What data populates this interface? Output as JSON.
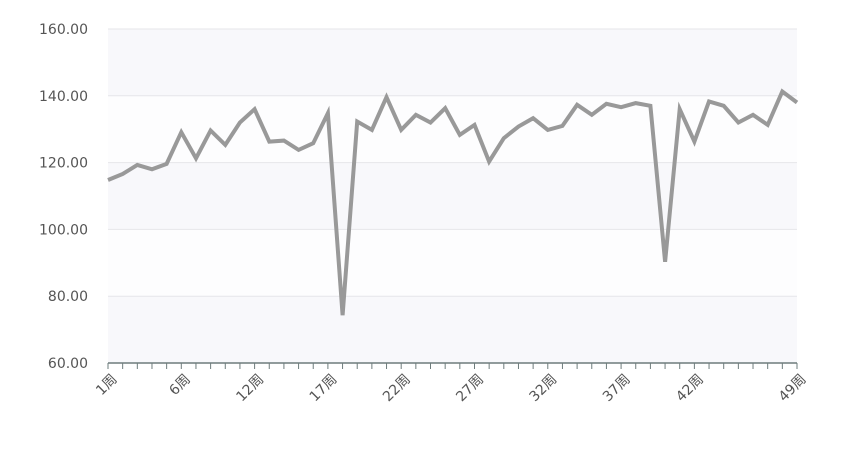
{
  "chart_data": {
    "type": "line",
    "title": "",
    "xlabel": "",
    "ylabel": "",
    "ylim": [
      60,
      160
    ],
    "y_ticks": [
      "60.00",
      "80.00",
      "100.00",
      "120.00",
      "140.00",
      "160.00"
    ],
    "x_tick_labels": [
      {
        "index": 0,
        "label": "1周"
      },
      {
        "index": 5,
        "label": "6周"
      },
      {
        "index": 10,
        "label": "12周"
      },
      {
        "index": 15,
        "label": "17周"
      },
      {
        "index": 20,
        "label": "22周"
      },
      {
        "index": 25,
        "label": "27周"
      },
      {
        "index": 30,
        "label": "32周"
      },
      {
        "index": 35,
        "label": "37周"
      },
      {
        "index": 40,
        "label": "42周"
      },
      {
        "index": 47,
        "label": "49周"
      }
    ],
    "grid": true,
    "line_color": "#999999",
    "series": [
      {
        "values": [
          114.8,
          116.6,
          119.3,
          118.0,
          119.6,
          129.1,
          121.3,
          129.6,
          125.3,
          132.0,
          136.0,
          126.3,
          126.6,
          123.8,
          125.8,
          134.8,
          74.3,
          132.3,
          129.8,
          139.6,
          129.8,
          134.3,
          132.0,
          136.3,
          128.3,
          131.3,
          120.3,
          127.3,
          130.8,
          133.3,
          129.8,
          131.0,
          137.3,
          134.3,
          137.6,
          136.6,
          137.8,
          137.0,
          90.3,
          136.0,
          126.3,
          138.3,
          137.0,
          132.0,
          134.3,
          131.3,
          141.3,
          138.0
        ]
      }
    ]
  }
}
